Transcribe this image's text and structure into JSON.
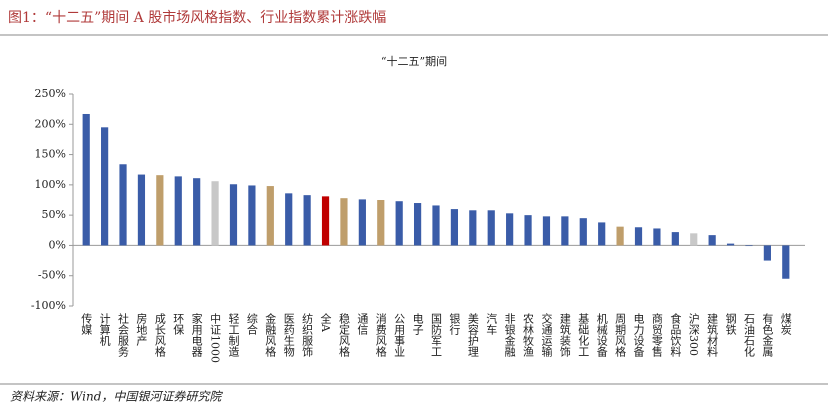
{
  "title": "图1：“十二五”期间 A 股市场风格指数、行业指数累计涨跌幅",
  "source": "资料来源：Wind，中国银河证券研究院",
  "chart_data": {
    "type": "bar",
    "title": "“十二五”期间",
    "categories": [
      "传媒",
      "计算机",
      "社会服务",
      "房地产",
      "成长风格",
      "环保",
      "家用电器",
      "中证1000",
      "轻工制造",
      "综合",
      "金融风格",
      "医药生物",
      "纺织服饰",
      "全A",
      "稳定风格",
      "通信",
      "消费风格",
      "公用事业",
      "电子",
      "国防军工",
      "银行",
      "美容护理",
      "汽车",
      "非银金融",
      "农林牧渔",
      "交通运输",
      "建筑装饰",
      "基础化工",
      "机械设备",
      "周期风格",
      "电力设备",
      "商贸零售",
      "食品饮料",
      "沪深300",
      "建筑材料",
      "钢铁",
      "石油石化",
      "有色金属",
      "煤炭"
    ],
    "values": [
      217,
      195,
      134,
      117,
      116,
      114,
      111,
      106,
      101,
      99,
      98,
      86,
      83,
      81,
      78,
      76,
      75,
      73,
      70,
      66,
      60,
      58,
      58,
      53,
      50,
      48,
      48,
      45,
      38,
      31,
      30,
      28,
      22,
      20,
      17,
      3,
      -1,
      -25,
      -55
    ],
    "colors": [
      "#3a5ca8",
      "#3a5ca8",
      "#3a5ca8",
      "#3a5ca8",
      "#bf9e6b",
      "#3a5ca8",
      "#3a5ca8",
      "#c8c8c8",
      "#3a5ca8",
      "#3a5ca8",
      "#bf9e6b",
      "#3a5ca8",
      "#3a5ca8",
      "#c00000",
      "#bf9e6b",
      "#3a5ca8",
      "#bf9e6b",
      "#3a5ca8",
      "#3a5ca8",
      "#3a5ca8",
      "#3a5ca8",
      "#3a5ca8",
      "#3a5ca8",
      "#3a5ca8",
      "#3a5ca8",
      "#3a5ca8",
      "#3a5ca8",
      "#3a5ca8",
      "#3a5ca8",
      "#bf9e6b",
      "#3a5ca8",
      "#3a5ca8",
      "#3a5ca8",
      "#c8c8c8",
      "#3a5ca8",
      "#3a5ca8",
      "#3a5ca8",
      "#3a5ca8",
      "#3a5ca8"
    ],
    "ylim": [
      -100,
      250
    ],
    "yticks": [
      {
        "value": -100,
        "label": "-100%"
      },
      {
        "value": -50,
        "label": "-50%"
      },
      {
        "value": 0,
        "label": "0%"
      },
      {
        "value": 50,
        "label": "50%"
      },
      {
        "value": 100,
        "label": "100%"
      },
      {
        "value": 150,
        "label": "150%"
      },
      {
        "value": 200,
        "label": "200%"
      },
      {
        "value": 250,
        "label": "250%"
      }
    ],
    "grid": false
  }
}
